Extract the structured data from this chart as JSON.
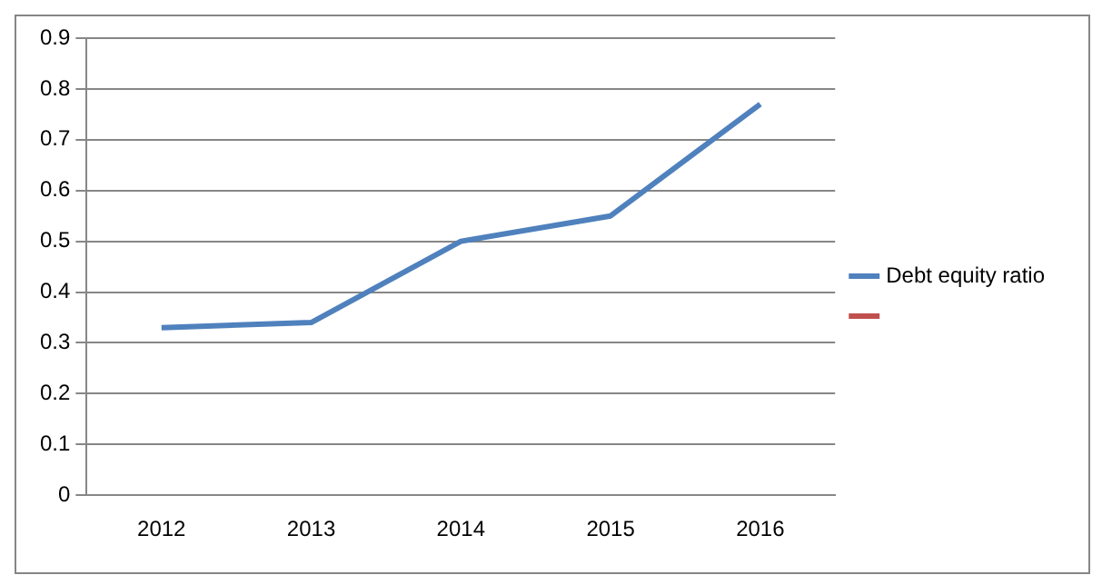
{
  "chart_data": {
    "type": "line",
    "categories": [
      "2012",
      "2013",
      "2014",
      "2015",
      "2016"
    ],
    "series": [
      {
        "name": "Debt equity ratio",
        "color": "#4f81bd",
        "values": [
          0.33,
          0.34,
          0.5,
          0.55,
          0.77
        ]
      },
      {
        "color": "#c0504d",
        "values": [
          null,
          null,
          null,
          null,
          null
        ]
      }
    ],
    "ylim": [
      0,
      0.9
    ],
    "yticks": [
      0,
      0.1,
      0.2,
      0.3,
      0.4,
      0.5,
      0.6,
      0.7,
      0.8,
      0.9
    ],
    "grid": "y",
    "legend": "right",
    "marker": "none",
    "line_style": "solid"
  }
}
